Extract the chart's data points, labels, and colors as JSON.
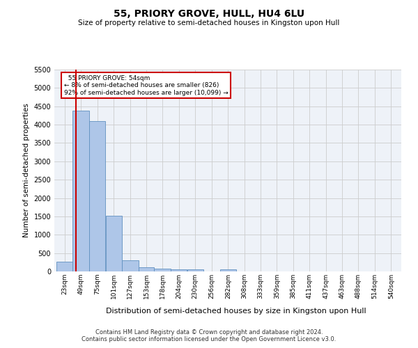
{
  "title": "55, PRIORY GROVE, HULL, HU4 6LU",
  "subtitle": "Size of property relative to semi-detached houses in Kingston upon Hull",
  "xlabel": "Distribution of semi-detached houses by size in Kingston upon Hull",
  "ylabel": "Number of semi-detached properties",
  "footer_line1": "Contains HM Land Registry data © Crown copyright and database right 2024.",
  "footer_line2": "Contains public sector information licensed under the Open Government Licence v3.0.",
  "property_size": 54,
  "property_label": "55 PRIORY GROVE: 54sqm",
  "pct_smaller": 8,
  "count_smaller": 826,
  "pct_larger": 92,
  "count_larger": 10099,
  "bar_color": "#aec6e8",
  "bar_edge_color": "#6090c0",
  "property_line_color": "#cc0000",
  "annotation_box_color": "#cc0000",
  "ylim": [
    0,
    5500
  ],
  "yticks": [
    0,
    500,
    1000,
    1500,
    2000,
    2500,
    3000,
    3500,
    4000,
    4500,
    5000,
    5500
  ],
  "categories": [
    "23sqm",
    "49sqm",
    "75sqm",
    "101sqm",
    "127sqm",
    "153sqm",
    "178sqm",
    "204sqm",
    "230sqm",
    "256sqm",
    "282sqm",
    "308sqm",
    "333sqm",
    "359sqm",
    "385sqm",
    "411sqm",
    "437sqm",
    "463sqm",
    "488sqm",
    "514sqm",
    "540sqm"
  ],
  "values": [
    260,
    4380,
    4100,
    1520,
    310,
    120,
    75,
    55,
    50,
    0,
    55,
    0,
    0,
    0,
    0,
    0,
    0,
    0,
    0,
    0,
    0
  ],
  "bin_edges": [
    23,
    49,
    75,
    101,
    127,
    153,
    178,
    204,
    230,
    256,
    282,
    308,
    333,
    359,
    385,
    411,
    437,
    463,
    488,
    514,
    540,
    566
  ]
}
